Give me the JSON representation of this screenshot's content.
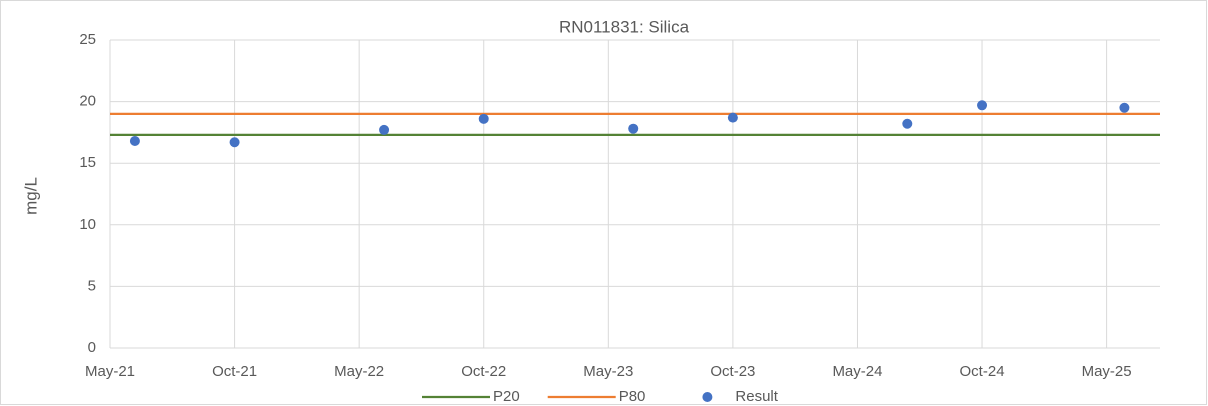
{
  "chart_data": {
    "type": "scatter",
    "title": "RN011831: Silica",
    "y_label": "mg/L",
    "xlim": [
      "2021-05",
      "2025-08"
    ],
    "xticks": [
      {
        "value": "2021-05",
        "label": "May-21"
      },
      {
        "value": "2021-10",
        "label": "Oct-21"
      },
      {
        "value": "2022-05",
        "label": "May-22"
      },
      {
        "value": "2022-10",
        "label": "Oct-22"
      },
      {
        "value": "2023-05",
        "label": "May-23"
      },
      {
        "value": "2023-10",
        "label": "Oct-23"
      },
      {
        "value": "2024-05",
        "label": "May-24"
      },
      {
        "value": "2024-10",
        "label": "Oct-24"
      },
      {
        "value": "2025-05",
        "label": "May-25"
      }
    ],
    "ylim": [
      0,
      25
    ],
    "yticks": [
      0,
      5,
      10,
      15,
      20,
      25
    ],
    "grid": true,
    "legend": "bottom",
    "series": [
      {
        "name": "P20",
        "type": "hline",
        "color": "#548235",
        "value": 17.3
      },
      {
        "name": "P80",
        "type": "hline",
        "color": "#ed7d31",
        "value": 19.0
      },
      {
        "name": "Result",
        "type": "scatter",
        "color": "#4472c4",
        "x": [
          "2021-06",
          "2021-10",
          "2022-06",
          "2022-10",
          "2023-06",
          "2023-10",
          "2024-07",
          "2024-10",
          "2025-06"
        ],
        "values": [
          16.8,
          16.7,
          17.7,
          18.6,
          17.8,
          18.7,
          18.2,
          19.7,
          19.5
        ]
      }
    ]
  }
}
